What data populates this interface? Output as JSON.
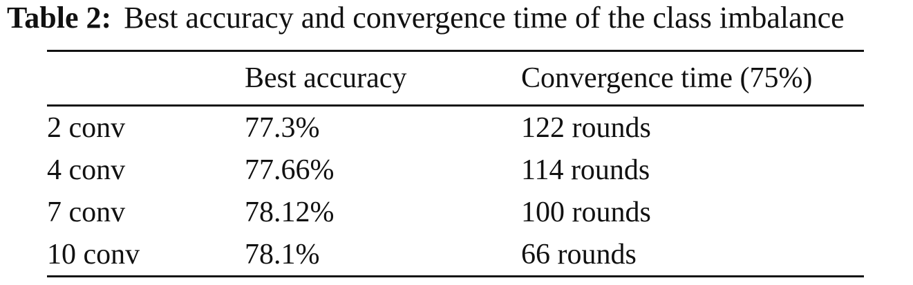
{
  "caption": {
    "label": "Table 2:",
    "text": "Best accuracy and convergence time of the class imbalance"
  },
  "table": {
    "header": [
      "",
      "Best accuracy",
      "Convergence time (75%)"
    ],
    "rows": [
      [
        "2 conv",
        "77.3%",
        "122 rounds"
      ],
      [
        "4 conv",
        "77.66%",
        "114 rounds"
      ],
      [
        "7 conv",
        "78.12%",
        "100 rounds"
      ],
      [
        "10 conv",
        "78.1%",
        "66 rounds"
      ]
    ]
  }
}
